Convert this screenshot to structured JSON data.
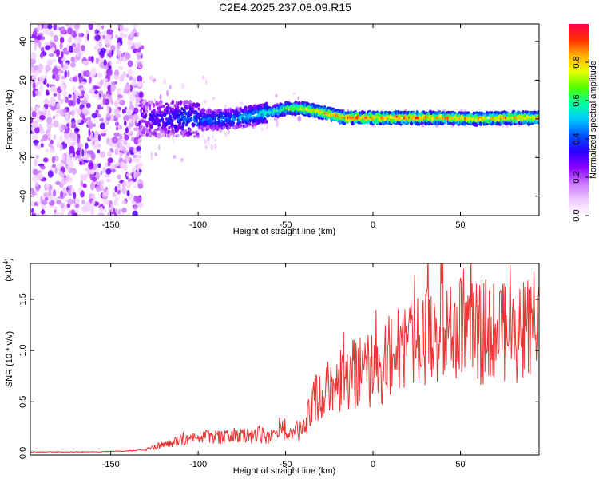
{
  "title": "C2E4.2025.237.08.09.R15",
  "chart_data": [
    {
      "type": "heatmap",
      "xlabel": "Height of straight line (km)",
      "ylabel": "Frequency (Hz)",
      "xlim": [
        -196,
        95
      ],
      "ylim": [
        -50,
        49
      ],
      "xticks": [
        -150,
        -100,
        -50,
        0,
        50
      ],
      "yticks": [
        -40,
        -20,
        0,
        20,
        40
      ],
      "colorbar": {
        "label": "Normalized spectral amplitude",
        "range": [
          0.0,
          1.0
        ],
        "ticks": [
          "0.0",
          "0.2",
          "0.4",
          "0.6",
          "0.8"
        ],
        "colormap": [
          "#ffffff",
          "#f0c8ff",
          "#c878ff",
          "#8a00ff",
          "#2a00ff",
          "#0050ff",
          "#00c8ff",
          "#00ffa0",
          "#50ff00",
          "#e8ff00",
          "#ffb000",
          "#ff3000",
          "#ff0050"
        ]
      },
      "ridge_points": [
        {
          "x": -130,
          "f": 0.0,
          "a": 0.2
        },
        {
          "x": -110,
          "f": 0.0,
          "a": 0.35
        },
        {
          "x": -90,
          "f": -0.5,
          "a": 0.4
        },
        {
          "x": -75,
          "f": 0.5,
          "a": 0.45
        },
        {
          "x": -60,
          "f": 3.0,
          "a": 0.55
        },
        {
          "x": -48,
          "f": 5.5,
          "a": 0.7
        },
        {
          "x": -38,
          "f": 5.0,
          "a": 0.8
        },
        {
          "x": -28,
          "f": 3.0,
          "a": 0.9
        },
        {
          "x": -15,
          "f": 0.5,
          "a": 0.95
        },
        {
          "x": 0,
          "f": 0.5,
          "a": 0.95
        },
        {
          "x": 20,
          "f": 0.5,
          "a": 0.95
        },
        {
          "x": 40,
          "f": 0.5,
          "a": 0.9
        },
        {
          "x": 60,
          "f": 0.0,
          "a": 0.9
        },
        {
          "x": 80,
          "f": 0.5,
          "a": 0.9
        },
        {
          "x": 94,
          "f": 0.5,
          "a": 0.85
        }
      ]
    },
    {
      "type": "line",
      "xlabel": "Height of straight line (km)",
      "ylabel": "SNR (10 * v/v)",
      "scale_label": "(x10",
      "scale_exponent": "4",
      "xlim": [
        -196,
        95
      ],
      "ylim": [
        -0.02,
        1.85
      ],
      "xticks": [
        -150,
        -100,
        -50,
        0,
        50
      ],
      "yticks": [
        "0.0",
        "0.5",
        "1.0",
        "1.5"
      ],
      "line_color": "#ee3333",
      "series": [
        {
          "x": [
            -196,
            -180,
            -160,
            -140,
            -130,
            -125,
            -120,
            -115,
            -110,
            -105,
            -100,
            -95,
            -90,
            -85,
            -80,
            -75,
            -70,
            -65,
            -60,
            -55,
            -50,
            -45,
            -42,
            -38,
            -35,
            -30,
            -25,
            -20,
            -15,
            -10,
            -5,
            0,
            5,
            10,
            15,
            20,
            25,
            30,
            35,
            40,
            45,
            50,
            55,
            60,
            65,
            70,
            75,
            80,
            85,
            90,
            95
          ],
          "values": [
            0.01,
            0.01,
            0.01,
            0.02,
            0.03,
            0.06,
            0.08,
            0.1,
            0.12,
            0.13,
            0.14,
            0.16,
            0.16,
            0.15,
            0.17,
            0.18,
            0.18,
            0.19,
            0.15,
            0.18,
            0.24,
            0.2,
            0.22,
            0.32,
            0.5,
            0.6,
            0.68,
            0.7,
            0.74,
            0.78,
            0.8,
            0.8,
            0.82,
            0.95,
            1.0,
            1.05,
            1.1,
            1.12,
            1.15,
            1.18,
            1.2,
            1.25,
            1.22,
            1.2,
            1.18,
            1.22,
            1.2,
            1.18,
            1.15,
            1.2,
            1.25
          ]
        }
      ]
    }
  ]
}
